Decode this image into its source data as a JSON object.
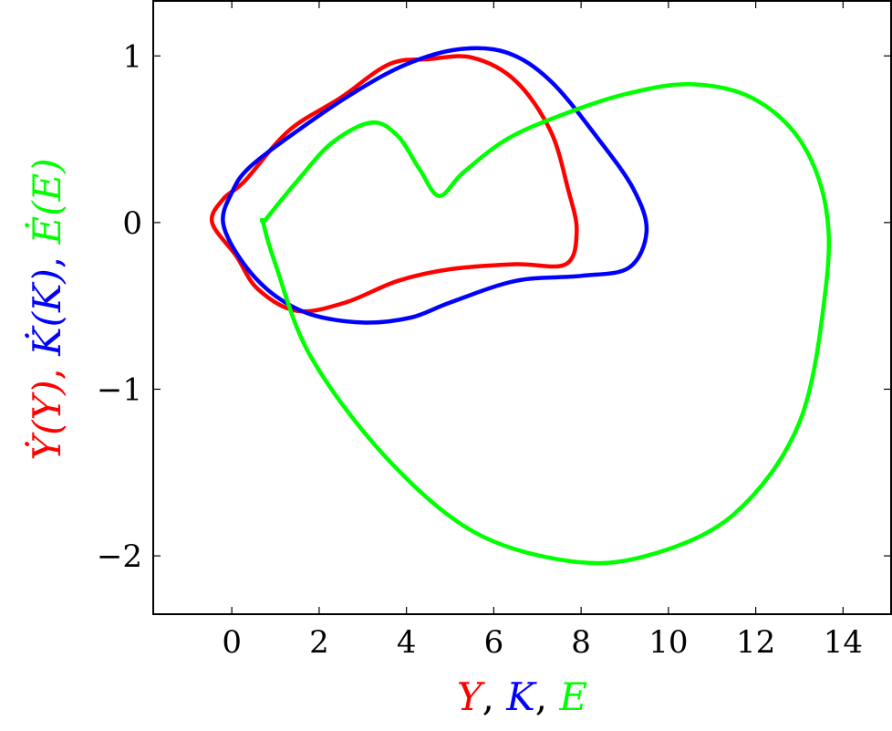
{
  "chart_data": {
    "type": "line",
    "title": "",
    "xlabel_parts": [
      {
        "text": "Y",
        "color": "#ff0000"
      },
      {
        "text": ", ",
        "color": "#000000"
      },
      {
        "text": "K",
        "color": "#0000ff"
      },
      {
        "text": ", ",
        "color": "#000000"
      },
      {
        "text": "E",
        "color": "#00ff00"
      }
    ],
    "ylabel_parts": [
      {
        "text": "Ẏ(Y)",
        "color": "#ff0000"
      },
      {
        "text": ", ",
        "color": "#ff0000"
      },
      {
        "text": "K̇(K)",
        "color": "#0000ff"
      },
      {
        "text": ", ",
        "color": "#0000ff"
      },
      {
        "text": "Ė(E)",
        "color": "#00ff00"
      }
    ],
    "xlim": [
      -1.8,
      15.1
    ],
    "ylim": [
      -2.35,
      1.33
    ],
    "xticks": [
      0,
      2,
      4,
      6,
      8,
      10,
      12,
      14
    ],
    "xtick_labels": [
      "0",
      "2",
      "4",
      "6",
      "8",
      "10",
      "12",
      "14"
    ],
    "yticks": [
      -2,
      -1,
      0,
      1
    ],
    "ytick_labels": [
      "−2",
      "−1",
      "0",
      "1"
    ],
    "grid": false,
    "series": [
      {
        "name": "Y",
        "color": "#ff0000",
        "closed": true,
        "points": [
          [
            0.3,
            0.25
          ],
          [
            1.3,
            0.55
          ],
          [
            2.5,
            0.75
          ],
          [
            3.6,
            0.95
          ],
          [
            4.5,
            0.98
          ],
          [
            5.5,
            0.99
          ],
          [
            6.5,
            0.85
          ],
          [
            7.3,
            0.55
          ],
          [
            7.7,
            0.2
          ],
          [
            7.9,
            -0.05
          ],
          [
            7.65,
            -0.25
          ],
          [
            6.5,
            -0.25
          ],
          [
            5.0,
            -0.28
          ],
          [
            3.8,
            -0.35
          ],
          [
            2.6,
            -0.48
          ],
          [
            1.5,
            -0.53
          ],
          [
            0.6,
            -0.4
          ],
          [
            0.1,
            -0.2
          ],
          [
            -0.45,
            0.0
          ],
          [
            -0.2,
            0.14
          ]
        ]
      },
      {
        "name": "K",
        "color": "#0000ff",
        "closed": true,
        "points": [
          [
            0.4,
            0.33
          ],
          [
            1.5,
            0.55
          ],
          [
            2.8,
            0.78
          ],
          [
            4.0,
            0.95
          ],
          [
            5.2,
            1.04
          ],
          [
            6.3,
            1.02
          ],
          [
            7.3,
            0.85
          ],
          [
            8.4,
            0.5
          ],
          [
            9.2,
            0.2
          ],
          [
            9.5,
            -0.05
          ],
          [
            9.1,
            -0.27
          ],
          [
            8.0,
            -0.32
          ],
          [
            6.5,
            -0.35
          ],
          [
            5.0,
            -0.48
          ],
          [
            4.1,
            -0.57
          ],
          [
            3.0,
            -0.6
          ],
          [
            1.8,
            -0.55
          ],
          [
            0.9,
            -0.42
          ],
          [
            0.2,
            -0.22
          ],
          [
            -0.2,
            0.0
          ],
          [
            0.0,
            0.18
          ]
        ]
      },
      {
        "name": "E",
        "color": "#00ff00",
        "closed": true,
        "points": [
          [
            0.78,
            0.02
          ],
          [
            1.5,
            0.25
          ],
          [
            2.3,
            0.48
          ],
          [
            3.2,
            0.6
          ],
          [
            3.8,
            0.52
          ],
          [
            4.3,
            0.32
          ],
          [
            4.75,
            0.16
          ],
          [
            5.3,
            0.3
          ],
          [
            6.3,
            0.5
          ],
          [
            7.5,
            0.64
          ],
          [
            9.0,
            0.77
          ],
          [
            10.5,
            0.83
          ],
          [
            11.9,
            0.75
          ],
          [
            13.0,
            0.5
          ],
          [
            13.6,
            0.1
          ],
          [
            13.6,
            -0.4
          ],
          [
            13.0,
            -1.2
          ],
          [
            11.5,
            -1.75
          ],
          [
            9.5,
            -2.0
          ],
          [
            7.7,
            -2.03
          ],
          [
            5.5,
            -1.85
          ],
          [
            3.5,
            -1.4
          ],
          [
            1.8,
            -0.8
          ],
          [
            1.0,
            -0.25
          ],
          [
            0.72,
            0.0
          ]
        ]
      }
    ]
  }
}
